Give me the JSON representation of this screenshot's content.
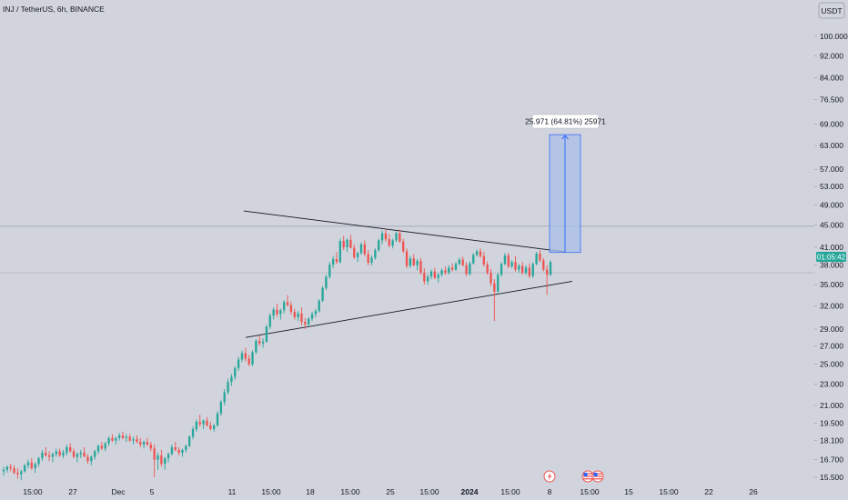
{
  "header": {
    "title": "INJ / TetherUS, 6h, BINANCE"
  },
  "currency_button": {
    "label": "USDT"
  },
  "price_badge": {
    "value": "01:05:42",
    "color": "#26a69a"
  },
  "measure_label": {
    "text": "25.971 (64.81%) 25971"
  },
  "icons": [
    "flash-icon",
    "us-flag-icon",
    "us-flag-icon"
  ],
  "colors": {
    "up": "#26a69a",
    "down": "#ef5350",
    "measure_fill": "#a8bfe8",
    "measure_line": "#2962ff",
    "trendline": "#131722",
    "background": "#d1d4dc"
  },
  "chart_data": {
    "type": "candlestick",
    "title": "INJ / TetherUS, 6h, BINANCE",
    "yscale": "log",
    "ylim": [
      15.0,
      115.0
    ],
    "y_ticks": [
      "100.000",
      "92.000",
      "84.000",
      "76.500",
      "69.000",
      "63.000",
      "57.000",
      "53.000",
      "49.000",
      "45.000",
      "41.000",
      "38.000",
      "35.000",
      "32.000",
      "29.000",
      "27.000",
      "25.000",
      "23.000",
      "21.000",
      "19.500",
      "18.100",
      "16.700",
      "15.500"
    ],
    "x_ticks": [
      "15:00",
      "27",
      "Dec",
      "5",
      "11",
      "15:00",
      "18",
      "15:00",
      "25",
      "15:00",
      "2024",
      "15:00",
      "8",
      "15:00",
      "15",
      "15:00",
      "22",
      "26"
    ],
    "current_price_line": 36.8,
    "horizontal_line": 44.8,
    "candles": [
      [
        15.9,
        16.2,
        15.6,
        16.0
      ],
      [
        16.0,
        16.3,
        15.8,
        16.2
      ],
      [
        16.2,
        16.4,
        15.9,
        16.1
      ],
      [
        16.1,
        16.3,
        15.7,
        15.8
      ],
      [
        15.8,
        16.1,
        15.4,
        15.7
      ],
      [
        15.7,
        16.0,
        15.3,
        15.9
      ],
      [
        15.9,
        16.4,
        15.8,
        16.3
      ],
      [
        16.3,
        16.7,
        16.1,
        16.5
      ],
      [
        16.5,
        16.8,
        16.0,
        16.1
      ],
      [
        16.1,
        16.5,
        15.8,
        16.4
      ],
      [
        16.4,
        16.9,
        16.2,
        16.8
      ],
      [
        16.8,
        17.4,
        16.6,
        17.2
      ],
      [
        17.2,
        17.6,
        16.9,
        17.0
      ],
      [
        17.0,
        17.3,
        16.6,
        16.9
      ],
      [
        16.9,
        17.2,
        16.5,
        17.1
      ],
      [
        17.1,
        17.5,
        16.9,
        17.3
      ],
      [
        17.3,
        17.5,
        16.9,
        17.0
      ],
      [
        17.0,
        17.4,
        16.8,
        17.2
      ],
      [
        17.2,
        17.8,
        17.0,
        17.6
      ],
      [
        17.6,
        17.9,
        17.2,
        17.3
      ],
      [
        17.3,
        17.5,
        16.8,
        16.9
      ],
      [
        16.9,
        17.2,
        16.5,
        17.1
      ],
      [
        17.1,
        17.4,
        16.8,
        17.2
      ],
      [
        17.2,
        17.6,
        16.9,
        16.9
      ],
      [
        16.9,
        17.1,
        16.4,
        16.6
      ],
      [
        16.6,
        17.0,
        16.3,
        16.9
      ],
      [
        16.9,
        17.4,
        16.7,
        17.3
      ],
      [
        17.3,
        17.8,
        17.1,
        17.7
      ],
      [
        17.7,
        18.0,
        17.4,
        17.5
      ],
      [
        17.5,
        18.0,
        17.3,
        17.9
      ],
      [
        17.9,
        18.4,
        17.7,
        18.3
      ],
      [
        18.3,
        18.6,
        18.0,
        18.1
      ],
      [
        18.1,
        18.4,
        17.8,
        18.3
      ],
      [
        18.3,
        18.7,
        18.1,
        18.5
      ],
      [
        18.5,
        18.8,
        18.2,
        18.3
      ],
      [
        18.3,
        18.6,
        18.0,
        18.4
      ],
      [
        18.4,
        18.6,
        18.0,
        18.1
      ],
      [
        18.1,
        18.4,
        17.8,
        18.2
      ],
      [
        18.2,
        18.5,
        17.9,
        18.0
      ],
      [
        18.0,
        18.3,
        17.6,
        17.8
      ],
      [
        17.8,
        18.1,
        17.5,
        18.0
      ],
      [
        18.0,
        18.3,
        17.7,
        17.8
      ],
      [
        17.8,
        18.0,
        17.3,
        17.5
      ],
      [
        17.5,
        17.8,
        15.5,
        16.7
      ],
      [
        16.7,
        17.2,
        16.0,
        17.0
      ],
      [
        17.0,
        17.4,
        16.2,
        16.4
      ],
      [
        16.4,
        16.9,
        16.0,
        16.8
      ],
      [
        16.8,
        17.2,
        16.5,
        17.1
      ],
      [
        17.1,
        17.8,
        17.0,
        17.6
      ],
      [
        17.6,
        18.0,
        17.3,
        17.4
      ],
      [
        17.4,
        17.6,
        17.0,
        17.2
      ],
      [
        17.2,
        17.5,
        16.9,
        17.4
      ],
      [
        17.4,
        17.8,
        17.2,
        17.7
      ],
      [
        17.7,
        18.5,
        17.6,
        18.4
      ],
      [
        18.4,
        19.2,
        18.2,
        19.0
      ],
      [
        19.0,
        19.8,
        18.8,
        19.6
      ],
      [
        19.6,
        20.2,
        19.2,
        19.4
      ],
      [
        19.4,
        19.8,
        19.0,
        19.7
      ],
      [
        19.7,
        20.0,
        19.2,
        19.3
      ],
      [
        19.3,
        19.6,
        18.9,
        19.0
      ],
      [
        19.0,
        19.4,
        18.8,
        19.3
      ],
      [
        19.3,
        20.5,
        19.2,
        20.3
      ],
      [
        20.3,
        21.5,
        20.1,
        21.3
      ],
      [
        21.3,
        22.5,
        21.0,
        22.2
      ],
      [
        22.2,
        23.5,
        22.0,
        23.2
      ],
      [
        23.2,
        24.0,
        22.8,
        23.7
      ],
      [
        23.7,
        24.8,
        23.4,
        24.6
      ],
      [
        24.6,
        25.8,
        24.3,
        25.5
      ],
      [
        25.5,
        26.5,
        25.2,
        26.2
      ],
      [
        26.2,
        26.8,
        25.3,
        25.6
      ],
      [
        25.6,
        26.0,
        24.8,
        25.0
      ],
      [
        25.0,
        26.5,
        24.8,
        26.3
      ],
      [
        26.3,
        27.8,
        26.1,
        27.6
      ],
      [
        27.6,
        28.2,
        27.0,
        27.3
      ],
      [
        27.3,
        27.9,
        26.8,
        27.5
      ],
      [
        27.5,
        29.5,
        27.4,
        29.3
      ],
      [
        29.3,
        31.0,
        29.0,
        30.7
      ],
      [
        30.7,
        31.8,
        30.2,
        31.5
      ],
      [
        31.5,
        32.3,
        30.5,
        30.9
      ],
      [
        30.9,
        31.6,
        30.2,
        31.4
      ],
      [
        31.4,
        32.8,
        31.0,
        32.5
      ],
      [
        32.5,
        33.5,
        31.9,
        32.1
      ],
      [
        32.1,
        32.6,
        30.8,
        31.2
      ],
      [
        31.2,
        31.6,
        30.2,
        30.5
      ],
      [
        30.5,
        31.3,
        30.0,
        31.0
      ],
      [
        31.0,
        31.8,
        29.5,
        29.9
      ],
      [
        29.9,
        30.4,
        29.0,
        29.6
      ],
      [
        29.6,
        30.5,
        29.3,
        30.3
      ],
      [
        30.3,
        31.2,
        30.0,
        30.9
      ],
      [
        30.9,
        31.6,
        30.5,
        31.3
      ],
      [
        31.3,
        32.9,
        31.1,
        32.7
      ],
      [
        32.7,
        34.8,
        32.5,
        34.5
      ],
      [
        34.5,
        36.5,
        34.2,
        36.2
      ],
      [
        36.2,
        38.5,
        35.9,
        38.1
      ],
      [
        38.1,
        39.5,
        37.5,
        39.0
      ],
      [
        39.0,
        40.2,
        38.2,
        38.5
      ],
      [
        38.5,
        42.5,
        38.3,
        42.1
      ],
      [
        42.1,
        43.0,
        40.5,
        41.0
      ],
      [
        41.0,
        42.6,
        40.2,
        42.3
      ],
      [
        42.3,
        43.2,
        40.8,
        40.9
      ],
      [
        40.9,
        41.5,
        39.0,
        39.3
      ],
      [
        39.3,
        40.2,
        38.5,
        40.0
      ],
      [
        40.0,
        41.8,
        39.7,
        41.5
      ],
      [
        41.5,
        42.2,
        39.5,
        39.8
      ],
      [
        39.8,
        40.5,
        38.0,
        38.4
      ],
      [
        38.4,
        39.6,
        38.0,
        39.2
      ],
      [
        39.2,
        40.8,
        38.9,
        40.5
      ],
      [
        40.5,
        42.5,
        40.2,
        42.2
      ],
      [
        42.2,
        44.0,
        41.5,
        43.5
      ],
      [
        43.5,
        44.3,
        42.0,
        42.4
      ],
      [
        42.4,
        43.3,
        41.0,
        41.3
      ],
      [
        41.3,
        42.5,
        40.8,
        42.2
      ],
      [
        42.2,
        43.8,
        41.9,
        43.5
      ],
      [
        43.5,
        44.2,
        41.8,
        42.0
      ],
      [
        42.0,
        42.5,
        40.0,
        40.3
      ],
      [
        40.3,
        40.8,
        37.5,
        37.9
      ],
      [
        37.9,
        39.5,
        37.5,
        39.1
      ],
      [
        39.1,
        39.8,
        37.8,
        38.0
      ],
      [
        38.0,
        39.0,
        37.2,
        38.7
      ],
      [
        38.7,
        39.2,
        36.5,
        36.8
      ],
      [
        36.8,
        37.5,
        35.0,
        35.5
      ],
      [
        35.5,
        36.5,
        35.0,
        36.2
      ],
      [
        36.2,
        37.3,
        35.8,
        37.0
      ],
      [
        37.0,
        37.6,
        35.8,
        36.0
      ],
      [
        36.0,
        36.8,
        35.3,
        36.5
      ],
      [
        36.5,
        37.5,
        36.2,
        37.2
      ],
      [
        37.2,
        37.8,
        36.5,
        36.8
      ],
      [
        36.8,
        38.0,
        36.5,
        37.6
      ],
      [
        37.6,
        38.3,
        37.0,
        37.3
      ],
      [
        37.3,
        38.5,
        37.1,
        38.2
      ],
      [
        38.2,
        39.2,
        38.0,
        38.9
      ],
      [
        38.9,
        39.4,
        37.8,
        38.0
      ],
      [
        38.0,
        38.5,
        36.3,
        36.6
      ],
      [
        36.6,
        38.6,
        36.4,
        38.3
      ],
      [
        38.3,
        40.0,
        38.1,
        39.7
      ],
      [
        39.7,
        40.6,
        39.4,
        40.3
      ],
      [
        40.3,
        40.8,
        39.2,
        39.5
      ],
      [
        39.5,
        40.2,
        37.8,
        38.1
      ],
      [
        38.1,
        38.6,
        36.5,
        36.8
      ],
      [
        36.8,
        37.4,
        34.8,
        35.2
      ],
      [
        35.2,
        35.8,
        30.0,
        34.0
      ],
      [
        34.0,
        36.8,
        33.8,
        36.5
      ],
      [
        36.5,
        38.5,
        36.2,
        38.2
      ],
      [
        38.2,
        40.0,
        38.0,
        39.6
      ],
      [
        39.6,
        40.0,
        37.5,
        37.8
      ],
      [
        37.8,
        38.8,
        37.5,
        38.5
      ],
      [
        38.5,
        39.5,
        37.0,
        37.3
      ],
      [
        37.3,
        38.2,
        36.8,
        37.9
      ],
      [
        37.9,
        38.5,
        36.5,
        36.8
      ],
      [
        36.8,
        38.0,
        36.5,
        37.6
      ],
      [
        37.6,
        38.3,
        36.0,
        36.3
      ],
      [
        36.3,
        38.5,
        36.0,
        38.2
      ],
      [
        38.2,
        40.2,
        38.0,
        39.9
      ],
      [
        39.9,
        40.5,
        38.5,
        38.8
      ],
      [
        38.8,
        39.2,
        37.0,
        37.3
      ],
      [
        37.3,
        38.0,
        33.5,
        36.5
      ],
      [
        36.5,
        38.8,
        36.3,
        38.5
      ]
    ],
    "trendlines": [
      {
        "from": [
          0,
          47.8
        ],
        "to": [
          1,
          40.2
        ],
        "label": "upper"
      },
      {
        "from": [
          0,
          28.0
        ],
        "to": [
          1,
          35.5
        ],
        "label": "lower"
      }
    ],
    "measure": {
      "from": 40.1,
      "to": 66.0,
      "change": 25.971,
      "percent": 64.81
    }
  }
}
